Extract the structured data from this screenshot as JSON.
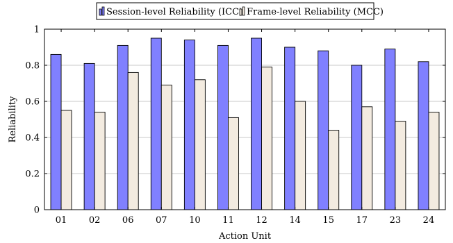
{
  "chart_data": {
    "type": "bar",
    "title": "",
    "xlabel": "Action Unit",
    "ylabel": "Reliability",
    "ylim": [
      0,
      1
    ],
    "yticks": [
      0,
      0.2,
      0.4,
      0.6,
      0.8,
      1
    ],
    "ytick_labels": [
      "0",
      "0.2",
      "0.4",
      "0.6",
      "0.8",
      "1"
    ],
    "grid": "horizontal",
    "legend_position": "top-center",
    "categories": [
      "01",
      "02",
      "06",
      "07",
      "10",
      "11",
      "12",
      "14",
      "15",
      "17",
      "23",
      "24"
    ],
    "series": [
      {
        "name": "Session-level Reliability (ICC)",
        "color": "#8080ff",
        "values": [
          0.86,
          0.81,
          0.91,
          0.95,
          0.94,
          0.91,
          0.95,
          0.9,
          0.88,
          0.8,
          0.89,
          0.82
        ]
      },
      {
        "name": "Frame-level Reliability (MCC)",
        "color": "#f3ebe0",
        "values": [
          0.55,
          0.54,
          0.76,
          0.69,
          0.72,
          0.51,
          0.79,
          0.6,
          0.44,
          0.57,
          0.49,
          0.54
        ]
      }
    ]
  }
}
